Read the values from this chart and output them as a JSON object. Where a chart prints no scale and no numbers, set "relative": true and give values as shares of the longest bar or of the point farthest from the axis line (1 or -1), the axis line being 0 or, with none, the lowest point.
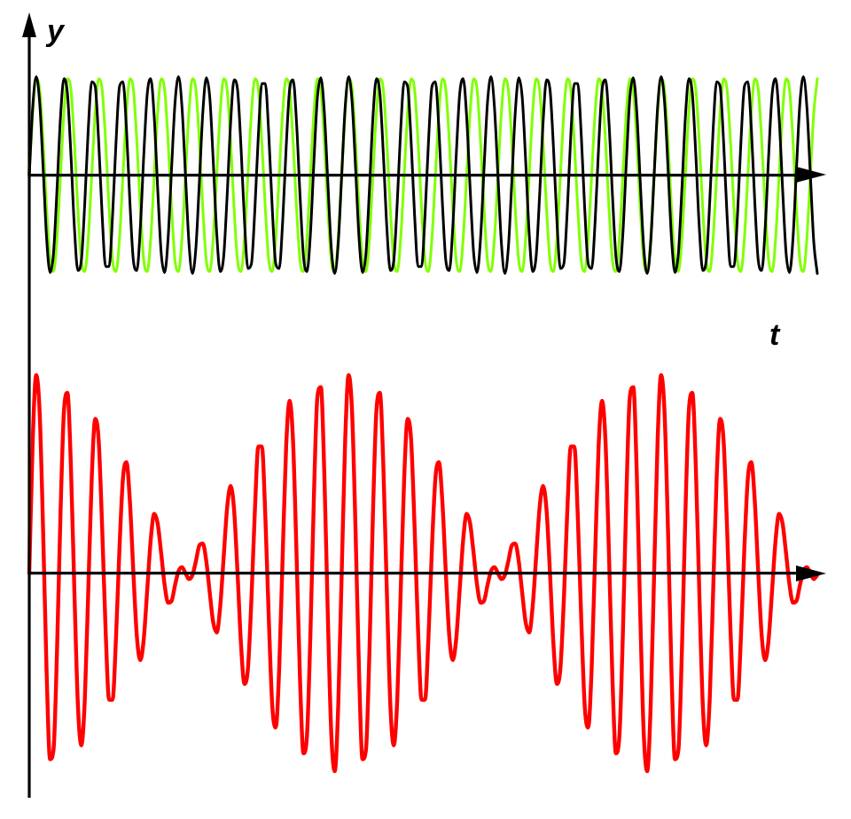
{
  "chart_data": [
    {
      "type": "line",
      "xlabel": "t",
      "ylabel": "y",
      "relative": true,
      "categories": [
        null,
        null,
        null,
        null,
        null,
        null,
        null,
        null,
        null,
        null,
        null,
        null,
        null,
        null,
        null,
        null,
        null,
        null,
        null,
        null,
        null,
        null,
        null,
        null,
        null,
        null,
        null,
        null,
        null,
        null,
        null,
        null,
        null,
        null,
        null,
        null,
        null,
        null,
        null,
        null,
        null,
        null,
        null,
        null,
        null,
        null,
        null,
        null,
        null,
        null,
        null,
        null,
        null,
        null,
        null,
        null,
        null,
        null,
        null,
        null,
        null,
        null,
        null,
        null,
        null,
        null,
        null,
        null,
        null,
        null,
        null,
        null,
        null,
        null,
        null,
        null,
        null,
        null,
        null,
        null,
        null,
        null,
        null,
        null,
        null,
        null,
        null,
        null,
        null,
        null,
        null,
        null,
        null,
        null,
        null,
        null,
        null,
        null,
        null,
        null,
        null,
        null,
        null,
        null,
        null,
        null,
        null,
        null,
        null,
        null,
        null,
        null,
        null,
        null,
        null,
        null,
        null,
        null,
        null,
        null,
        null,
        null,
        null,
        null,
        null,
        null,
        null,
        null,
        null,
        null,
        null,
        null,
        null,
        null,
        null,
        null,
        null,
        null,
        null,
        null,
        null,
        null,
        null,
        null,
        null,
        null,
        null,
        null,
        null,
        null,
        null,
        null,
        null,
        null,
        null,
        null,
        null,
        null,
        null,
        null,
        null,
        null,
        null,
        null,
        null,
        null,
        null,
        null,
        null,
        null,
        null,
        null,
        null,
        null,
        null,
        null,
        null,
        null,
        null,
        null,
        null,
        null,
        null,
        null,
        null,
        null,
        null,
        null,
        null,
        null,
        null,
        null,
        null,
        null,
        null,
        null,
        null,
        null,
        null,
        null,
        null,
        null,
        null,
        null,
        null,
        null,
        null,
        null,
        null,
        null,
        null,
        null,
        null,
        null,
        null,
        null,
        null,
        null,
        null,
        null,
        null,
        null,
        null,
        null,
        null,
        null,
        null,
        null
      ],
      "series": [
        {
          "color": "#80ff00",
          "values": [
            0,
            0.64,
            0.98,
            0.87,
            0.34,
            -0.34,
            -0.87,
            -0.98,
            -0.64,
            0,
            0.64,
            0.98,
            0.87,
            0.34,
            -0.34,
            -0.87,
            -0.98,
            -0.64,
            0,
            0.64,
            0.98,
            0.87,
            0.34,
            -0.34,
            -0.87,
            -0.98,
            -0.64,
            0,
            0.64,
            0.98,
            0.87,
            0.34,
            -0.34,
            -0.87,
            -0.98,
            -0.64,
            0,
            0.64,
            0.98,
            0.87,
            0.34,
            -0.34,
            -0.87,
            -0.98,
            -0.64,
            0,
            0.64,
            0.98,
            0.87,
            0.34,
            -0.34,
            -0.87,
            -0.98,
            -0.64,
            0,
            0.64,
            0.98,
            0.87,
            0.34,
            -0.34,
            -0.87,
            -0.98,
            -0.64,
            0,
            0.64,
            0.98,
            0.87,
            0.34,
            -0.34,
            -0.87,
            -0.98,
            -0.64,
            0,
            0.64,
            0.98,
            0.87,
            0.34,
            -0.34,
            -0.87,
            -0.98,
            -0.64,
            0,
            0.64,
            0.98,
            0.87,
            0.34,
            -0.34,
            -0.87,
            -0.98,
            -0.64,
            0,
            0.64,
            0.98,
            0.87,
            0.34,
            -0.34,
            -0.87,
            -0.98,
            -0.64,
            0,
            0.64,
            0.98,
            0.87,
            0.34,
            -0.34,
            -0.87,
            -0.98,
            -0.64,
            0,
            0.64,
            0.98,
            0.87,
            0.34,
            -0.34,
            -0.87,
            -0.98,
            -0.64,
            0,
            0.64,
            0.98,
            0.87,
            0.34,
            -0.34,
            -0.87,
            -0.98,
            -0.64,
            0,
            0.64,
            0.98,
            0.87,
            0.34,
            -0.34,
            -0.87,
            -0.98,
            -0.64,
            0,
            0.64,
            0.98,
            0.87,
            0.34,
            -0.34,
            -0.87,
            -0.98,
            -0.64,
            0,
            0.64,
            0.98,
            0.87,
            0.34,
            -0.34,
            -0.87,
            -0.98,
            -0.64,
            0,
            0.64,
            0.98,
            0.87,
            0.34,
            -0.34,
            -0.87,
            -0.98,
            -0.64,
            0,
            0.64,
            0.98,
            0.87,
            0.34,
            -0.34,
            -0.87,
            -0.98,
            -0.64,
            0,
            0.64,
            0.98,
            0.87,
            0.34,
            -0.34,
            -0.87,
            -0.98,
            -0.64,
            0,
            0.64,
            0.98,
            0.87,
            0.34,
            -0.34,
            -0.87,
            -0.98,
            -0.64,
            0,
            0.64,
            0.98,
            0.87,
            0.34,
            -0.34,
            -0.87,
            -0.98,
            -0.64,
            0,
            0.64,
            0.98,
            0.87,
            0.34,
            -0.34,
            -0.87,
            -0.98,
            -0.64,
            0,
            0.64,
            0.98,
            0.87,
            0.34,
            -0.34,
            -0.87,
            -0.98,
            -0.64,
            0,
            0.64,
            0.98,
            0.87,
            0.34,
            -0.34,
            -0.87,
            -0.98,
            -0.64,
            0,
            0.64,
            0.98
          ]
        },
        {
          "color": "#000000",
          "values": [
            0,
            0.69,
            1,
            0.74,
            0.07,
            -0.64,
            -0.99,
            -0.79,
            -0.14,
            0.59,
            0.98,
            0.83,
            0.21,
            -0.53,
            -0.97,
            -0.87,
            -0.28,
            0.47,
            0.95,
            0.9,
            0.34,
            -0.41,
            -0.93,
            -0.93,
            -0.41,
            0.34,
            0.9,
            0.95,
            0.47,
            -0.28,
            -0.87,
            -0.97,
            -0.53,
            0.21,
            0.83,
            0.98,
            0.59,
            -0.14,
            -0.79,
            -0.99,
            -0.64,
            0.07,
            0.74,
            1,
            0.69,
            0,
            -0.69,
            -1,
            -0.74,
            -0.07,
            0.64,
            0.99,
            0.79,
            0.14,
            -0.59,
            -0.98,
            -0.83,
            -0.21,
            0.53,
            0.97,
            0.87,
            0.28,
            -0.47,
            -0.95,
            -0.9,
            -0.34,
            0.41,
            0.93,
            0.93,
            0.41,
            -0.34,
            -0.9,
            -0.95,
            -0.47,
            0.28,
            0.87,
            0.97,
            0.53,
            -0.21,
            -0.83,
            -0.98,
            -0.59,
            0.14,
            0.79,
            0.99,
            0.64,
            -0.07,
            -0.74,
            -1,
            -0.69,
            0,
            0.69,
            1,
            0.74,
            0.07,
            -0.64,
            -0.99,
            -0.79,
            -0.14,
            0.59,
            0.98,
            0.83,
            0.21,
            -0.53,
            -0.97,
            -0.87,
            -0.28,
            0.47,
            0.95,
            0.9,
            0.34,
            -0.41,
            -0.93,
            -0.93,
            -0.41,
            0.34,
            0.9,
            0.95,
            0.47,
            -0.28,
            -0.87,
            -0.97,
            -0.53,
            0.21,
            0.83,
            0.98,
            0.59,
            -0.14,
            -0.79,
            -0.99,
            -0.64,
            0.07,
            0.74,
            1,
            0.69,
            0,
            -0.69,
            -1,
            -0.74,
            -0.07,
            0.64,
            0.99,
            0.79,
            0.14,
            -0.59,
            -0.98,
            -0.83,
            -0.21,
            0.53,
            0.97,
            0.87,
            0.28,
            -0.47,
            -0.95,
            -0.9,
            -0.34,
            0.41,
            0.93,
            0.93,
            0.41,
            -0.34,
            -0.9,
            -0.95,
            -0.47,
            0.28,
            0.87,
            0.97,
            0.53,
            -0.21,
            -0.83,
            -0.98,
            -0.59,
            0.14,
            0.79,
            0.99,
            0.64,
            -0.07,
            -0.74,
            -1,
            -0.69,
            0,
            0.69,
            1,
            0.74,
            0.07,
            -0.64,
            -0.99,
            -0.79,
            -0.14,
            0.59,
            0.98,
            0.83,
            0.21,
            -0.53,
            -0.97,
            -0.87,
            -0.28,
            0.47,
            0.95,
            0.9,
            0.34,
            -0.41,
            -0.93,
            -0.93,
            -0.41,
            0.34,
            0.9,
            0.95,
            0.47,
            -0.28,
            -0.87,
            -0.97,
            -0.53,
            0.21,
            0.83,
            0.98,
            0.59,
            -0.14,
            -0.79,
            -0.99,
            -0.64,
            0.07,
            0.74,
            1,
            0.69,
            0,
            -0.69,
            -1
          ]
        }
      ]
    },
    {
      "type": "line",
      "relative": true,
      "categories": [
        null,
        null,
        null,
        null,
        null,
        null,
        null,
        null,
        null,
        null,
        null,
        null,
        null,
        null,
        null,
        null,
        null,
        null,
        null,
        null,
        null,
        null,
        null,
        null,
        null,
        null,
        null,
        null,
        null,
        null,
        null,
        null,
        null,
        null,
        null,
        null,
        null,
        null,
        null,
        null,
        null,
        null,
        null,
        null,
        null,
        null,
        null,
        null,
        null,
        null,
        null,
        null,
        null,
        null,
        null,
        null,
        null,
        null,
        null,
        null,
        null,
        null,
        null,
        null,
        null,
        null,
        null,
        null,
        null,
        null,
        null,
        null,
        null,
        null,
        null,
        null,
        null,
        null,
        null,
        null,
        null,
        null,
        null,
        null,
        null,
        null,
        null,
        null,
        null,
        null,
        null,
        null,
        null,
        null,
        null,
        null,
        null,
        null,
        null,
        null,
        null,
        null,
        null,
        null,
        null,
        null,
        null,
        null,
        null,
        null,
        null,
        null,
        null,
        null,
        null,
        null,
        null,
        null,
        null,
        null,
        null,
        null,
        null,
        null,
        null,
        null,
        null,
        null,
        null,
        null,
        null,
        null,
        null,
        null,
        null,
        null,
        null,
        null,
        null,
        null,
        null,
        null,
        null,
        null,
        null,
        null,
        null,
        null,
        null,
        null,
        null,
        null,
        null,
        null,
        null,
        null,
        null,
        null,
        null,
        null,
        null,
        null,
        null,
        null,
        null,
        null,
        null,
        null,
        null,
        null,
        null,
        null,
        null,
        null,
        null,
        null,
        null,
        null,
        null,
        null,
        null,
        null,
        null,
        null,
        null,
        null,
        null,
        null,
        null,
        null,
        null,
        null,
        null,
        null,
        null,
        null,
        null,
        null,
        null,
        null,
        null,
        null,
        null,
        null,
        null,
        null,
        null,
        null,
        null,
        null,
        null,
        null,
        null,
        null,
        null,
        null,
        null,
        null,
        null,
        null,
        null,
        null,
        null,
        null,
        null,
        null,
        null,
        null
      ],
      "series": [
        {
          "color": "#ff0000",
          "values": [
            0,
            0.67,
            1,
            0.81,
            0.21,
            -0.5,
            -0.94,
            -0.89,
            -0.39,
            0.3,
            0.82,
            0.91,
            0.54,
            -0.09,
            -0.66,
            -0.87,
            -0.64,
            -0.09,
            0.48,
            0.78,
            0.67,
            0.23,
            -0.29,
            -0.64,
            -0.64,
            -0.32,
            0.13,
            0.48,
            0.56,
            0.36,
            0,
            -0.32,
            -0.44,
            -0.33,
            -0.08,
            0.17,
            0.3,
            0.25,
            0.1,
            -0.06,
            -0.15,
            -0.14,
            -0.06,
            0.01,
            0.03,
            0,
            -0.03,
            -0.01,
            0.06,
            0.14,
            0.15,
            0.06,
            -0.1,
            -0.25,
            -0.3,
            -0.17,
            0.08,
            0.33,
            0.44,
            0.32,
            0,
            -0.36,
            -0.56,
            -0.48,
            -0.13,
            0.32,
            0.64,
            0.64,
            0.29,
            -0.23,
            -0.67,
            -0.78,
            -0.48,
            0.09,
            0.64,
            0.87,
            0.66,
            0.09,
            -0.54,
            -0.91,
            -0.82,
            -0.3,
            0.39,
            0.89,
            0.94,
            0.5,
            -0.21,
            -0.81,
            -1,
            -0.67,
            0,
            0.67,
            1,
            0.81,
            0.21,
            -0.5,
            -0.94,
            -0.89,
            -0.39,
            0.3,
            0.82,
            0.91,
            0.54,
            -0.09,
            -0.66,
            -0.87,
            -0.64,
            -0.09,
            0.48,
            0.78,
            0.67,
            0.23,
            -0.29,
            -0.64,
            -0.64,
            -0.32,
            0.13,
            0.48,
            0.56,
            0.36,
            0,
            -0.32,
            -0.44,
            -0.33,
            -0.08,
            0.17,
            0.3,
            0.25,
            0.1,
            -0.06,
            -0.15,
            -0.14,
            -0.06,
            0.01,
            0.03,
            0,
            -0.03,
            -0.01,
            0.06,
            0.14,
            0.15,
            0.06,
            -0.1,
            -0.25,
            -0.3,
            -0.17,
            0.08,
            0.33,
            0.44,
            0.32,
            0,
            -0.36,
            -0.56,
            -0.48,
            -0.13,
            0.32,
            0.64,
            0.64,
            0.29,
            -0.23,
            -0.67,
            -0.78,
            -0.48,
            0.09,
            0.64,
            0.87,
            0.66,
            0.09,
            -0.54,
            -0.91,
            -0.82,
            -0.3,
            0.39,
            0.89,
            0.94,
            0.5,
            -0.21,
            -0.81,
            -1,
            -0.67,
            0,
            0.67,
            1,
            0.81,
            0.21,
            -0.5,
            -0.94,
            -0.89,
            -0.39,
            0.3,
            0.82,
            0.91,
            0.54,
            -0.09,
            -0.66,
            -0.87,
            -0.64,
            -0.09,
            0.48,
            0.78,
            0.67,
            0.23,
            -0.29,
            -0.64,
            -0.64,
            -0.32,
            0.13,
            0.48,
            0.56,
            0.36,
            0,
            -0.32,
            -0.44,
            -0.33,
            -0.08,
            0.17,
            0.3,
            0.25,
            0.1,
            -0.06,
            -0.15,
            -0.14,
            -0.06,
            0.01,
            0.03,
            0,
            -0.03,
            -0.01
          ]
        }
      ]
    }
  ]
}
